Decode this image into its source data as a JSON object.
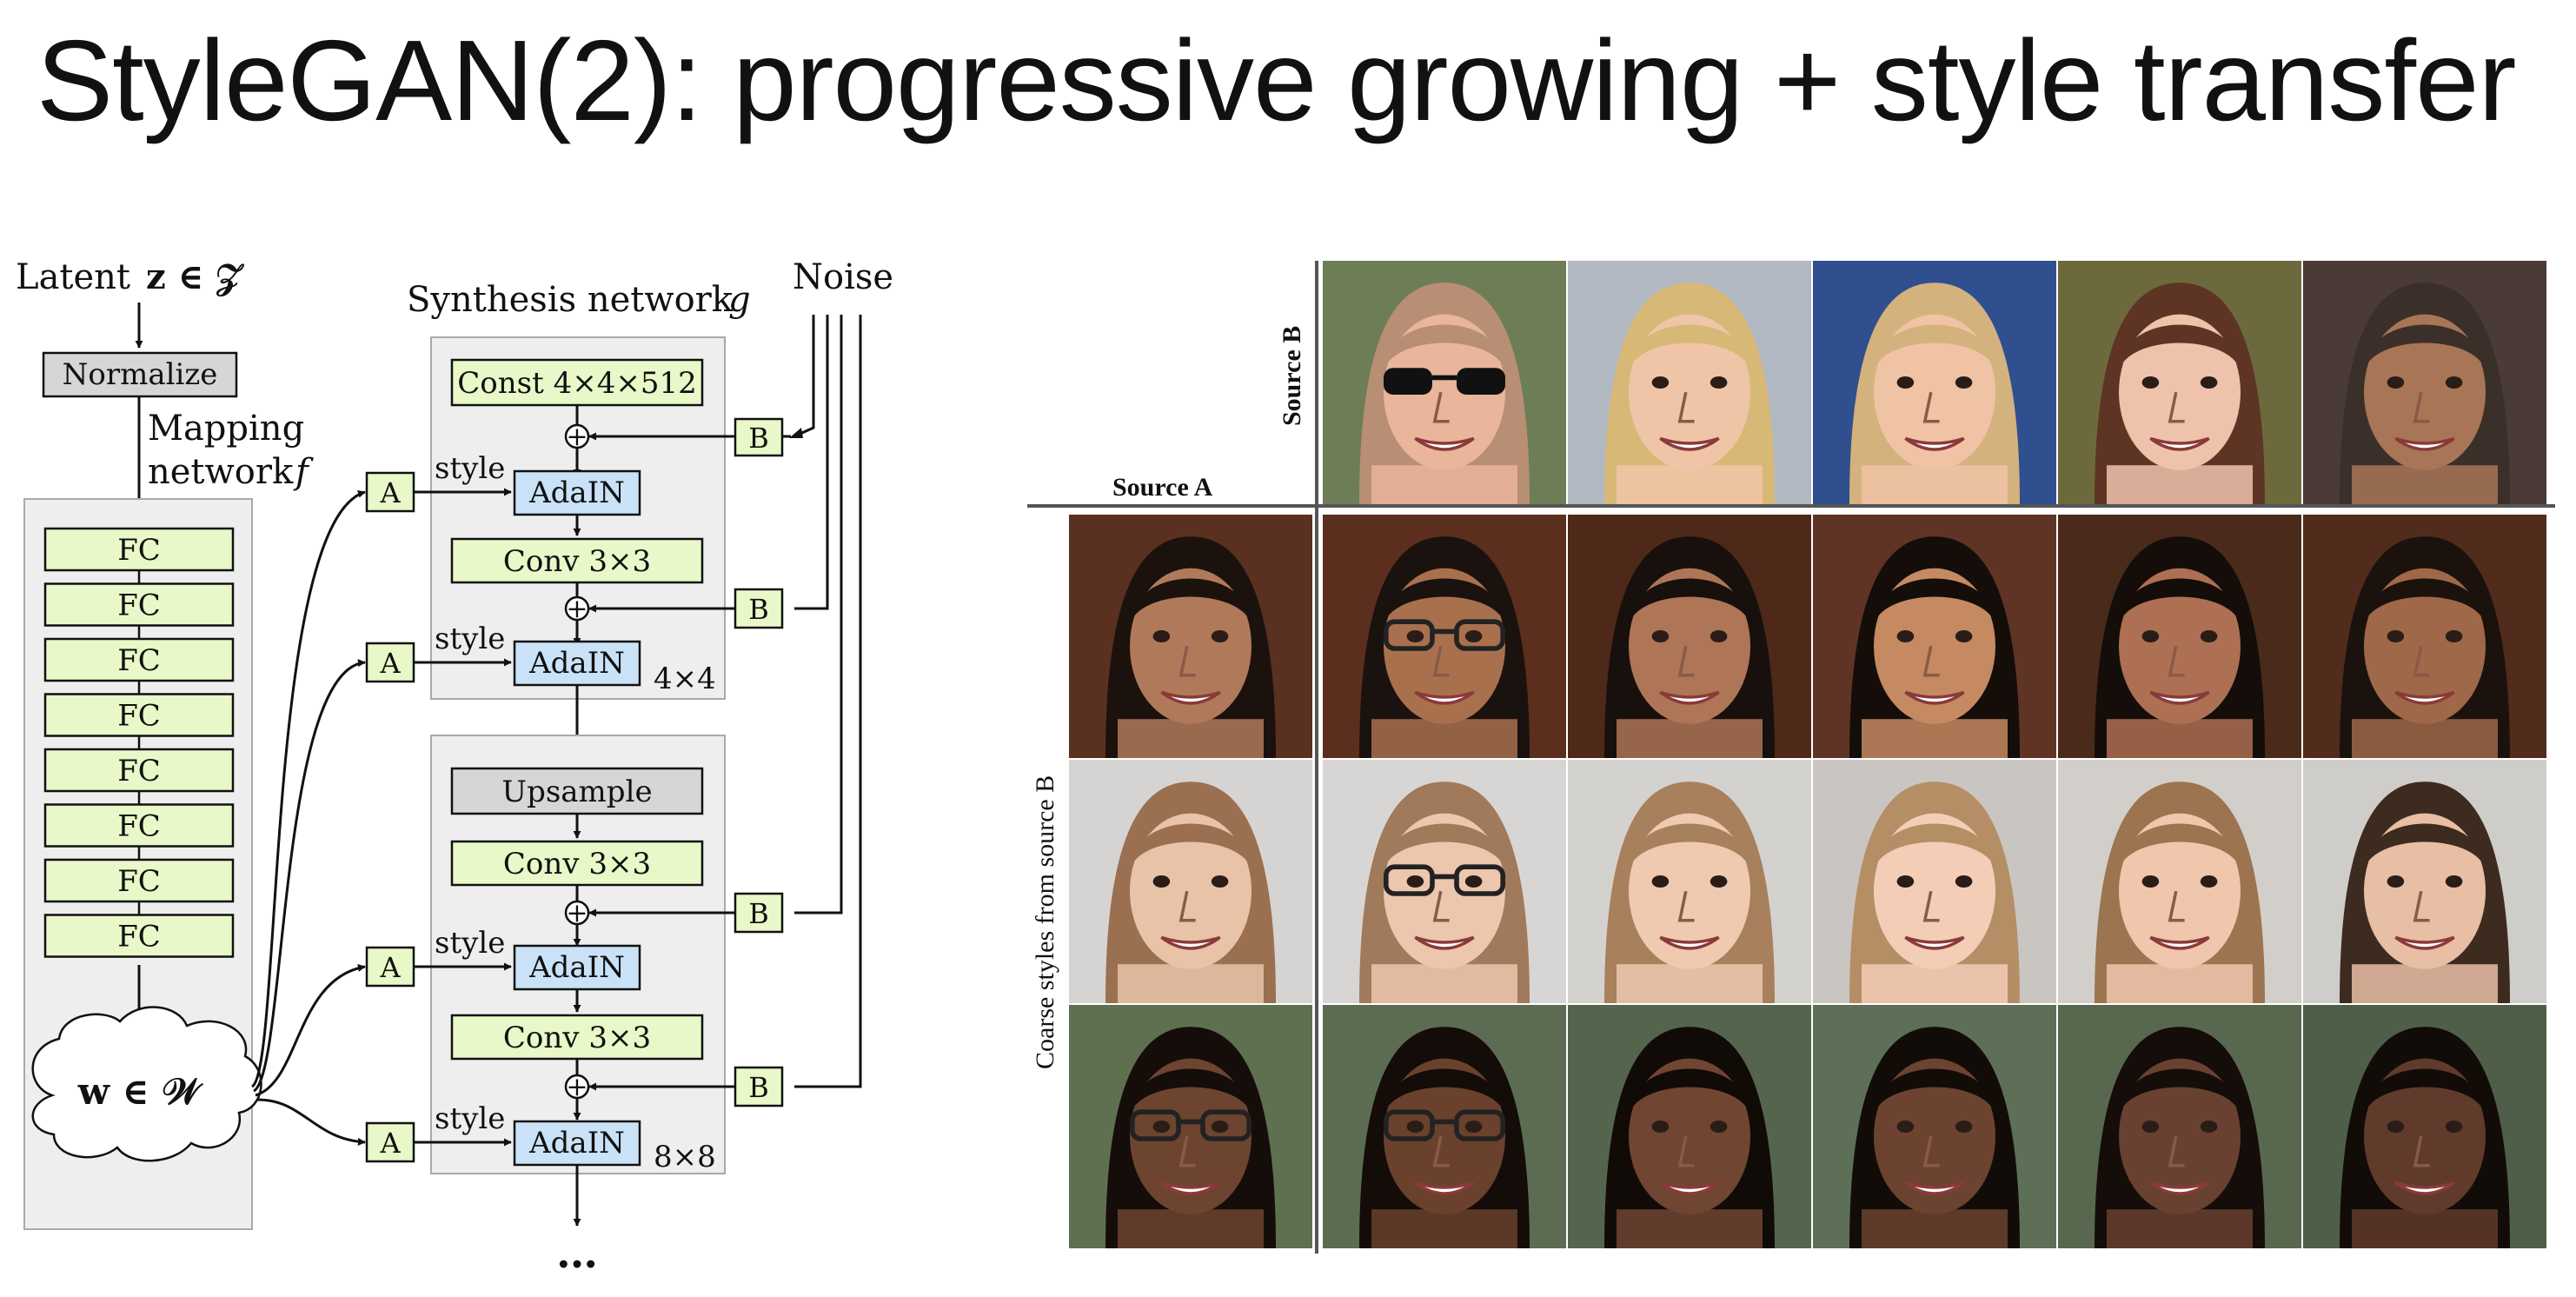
{
  "slide": {
    "title": "StyleGAN(2): progressive growing + style transfer"
  },
  "architecture": {
    "latent_label": "Latent",
    "latent_var": "z ∈ 𝒵",
    "normalize_label": "Normalize",
    "mapping_label_1": "Mapping",
    "mapping_label_2": "network",
    "mapping_fn": "f",
    "fc_labels": [
      "FC",
      "FC",
      "FC",
      "FC",
      "FC",
      "FC",
      "FC",
      "FC"
    ],
    "w_label": "w ∈ 𝒲",
    "synthesis_label": "Synthesis network",
    "synthesis_fn": "g",
    "noise_label": "Noise",
    "const_label": "Const 4×4×512",
    "conv_label": "Conv 3×3",
    "adain_label": "AdaIN",
    "upsample_label": "Upsample",
    "a_label": "A",
    "b_label": "B",
    "style_label": "style",
    "plus_symbol": "+",
    "res_1": "4×4",
    "res_2": "8×8",
    "ellipsis": "…",
    "colors": {
      "block_green": "#e8f8c8",
      "block_blue": "#c9e2f7",
      "block_gray": "#d6d6d6",
      "panel_gray": "#eeeeee"
    }
  },
  "faces": {
    "source_b_label": "Source B",
    "source_a_label": "Source A",
    "coarse_label": "Coarse styles from source B",
    "source_b_faces": [
      {
        "skin": "#e9b59b",
        "hair": "#b88f74",
        "bg": "#6d7e57",
        "glasses": "dark"
      },
      {
        "skin": "#f0c5a7",
        "hair": "#d8b877",
        "bg": "#b2b9c2",
        "glasses": "none"
      },
      {
        "skin": "#f0c3a4",
        "hair": "#d3b27e",
        "bg": "#2f4f8e",
        "glasses": "none"
      },
      {
        "skin": "#efc3ab",
        "hair": "#5e3424",
        "bg": "#6c6a3c",
        "glasses": "none"
      },
      {
        "skin": "#a87656",
        "hair": "#3b2f2a",
        "bg": "#4a3b36",
        "glasses": "none"
      }
    ],
    "source_a_faces": [
      {
        "skin": "#b07a5a",
        "hair": "#1b120e",
        "bg": "#5a3020",
        "glasses": "none"
      },
      {
        "skin": "#e9c3a8",
        "hair": "#9a7050",
        "bg": "#d6d4d2",
        "glasses": "none"
      },
      {
        "skin": "#6d4430",
        "hair": "#150d0a",
        "bg": "#5e7050",
        "glasses": "clear"
      }
    ],
    "mixed_faces": [
      [
        {
          "skin": "#a9704e",
          "hair": "#1a120e",
          "bg": "#5b2e1d",
          "glasses": "clear"
        },
        {
          "skin": "#ae7556",
          "hair": "#17100c",
          "bg": "#4e2818",
          "glasses": "none"
        },
        {
          "skin": "#c58a62",
          "hair": "#140d0a",
          "bg": "#5f3424",
          "glasses": "none"
        },
        {
          "skin": "#ad7052",
          "hair": "#140d0a",
          "bg": "#4a2a1b",
          "glasses": "none"
        },
        {
          "skin": "#9f6848",
          "hair": "#1b120e",
          "bg": "#512b1b",
          "glasses": "none"
        }
      ],
      [
        {
          "skin": "#edc6ae",
          "hair": "#a07a5a",
          "bg": "#d8d6d4",
          "glasses": "clear"
        },
        {
          "skin": "#efc9b0",
          "hair": "#a8805c",
          "bg": "#d4d2cf",
          "glasses": "none"
        },
        {
          "skin": "#f3cdb6",
          "hair": "#b68e66",
          "bg": "#c9c6c2",
          "glasses": "none"
        },
        {
          "skin": "#f0c6ad",
          "hair": "#9c7450",
          "bg": "#d2cfcb",
          "glasses": "none"
        },
        {
          "skin": "#e8bea4",
          "hair": "#3d2b20",
          "bg": "#cfcdca",
          "glasses": "none"
        }
      ],
      [
        {
          "skin": "#6a412d",
          "hair": "#130c09",
          "bg": "#5c6c52",
          "glasses": "clear"
        },
        {
          "skin": "#704532",
          "hair": "#110b08",
          "bg": "#55654d",
          "glasses": "none"
        },
        {
          "skin": "#6b4330",
          "hair": "#120c09",
          "bg": "#5d6f56",
          "glasses": "none"
        },
        {
          "skin": "#694130",
          "hair": "#140d0a",
          "bg": "#58684f",
          "glasses": "none"
        },
        {
          "skin": "#603b2b",
          "hair": "#120c09",
          "bg": "#4f5e48",
          "glasses": "none"
        }
      ]
    ]
  }
}
